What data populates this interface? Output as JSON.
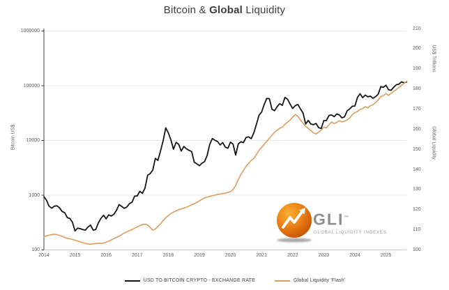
{
  "title": {
    "pre": "Bitcoin & ",
    "bold": "Global",
    "post": " Liquidity"
  },
  "axes": {
    "left": {
      "title": "Bitcoin US$",
      "tick_labels": [
        "1000000",
        "100000",
        "10000",
        "1000",
        "100"
      ]
    },
    "right": {
      "unit_label": "US$ Trillions",
      "axis_label": "Global Liquidity",
      "tick_labels": [
        "210",
        "200",
        "190",
        "180",
        "170",
        "160",
        "150",
        "140",
        "130",
        "120",
        "110",
        "100"
      ]
    },
    "x": {
      "tick_labels": [
        "2014",
        "2015",
        "2016",
        "2017",
        "2018",
        "2019",
        "2020",
        "2021",
        "2022",
        "2023",
        "2024",
        "2025"
      ]
    }
  },
  "legend": {
    "items": [
      {
        "label": "USD TO BITCOIN CRYPTO - EXCHANGE RATE",
        "color": "#141414"
      },
      {
        "label": "Global Liquidity 'Flash'",
        "color": "#dc9c5e"
      }
    ]
  },
  "logo": {
    "name": "GLI",
    "trademark": "™",
    "subtitle": "GLOBAL LIQUIDITY INDEXES",
    "orange": "#e8731a",
    "gray": "#8d8d8d"
  },
  "chart_data": {
    "type": "line",
    "title": "Bitcoin & Global Liquidity",
    "sampling": "monthly",
    "x_start_year": 2014,
    "x_start_month": 1,
    "x_axis": {
      "range": [
        2014,
        2025.75
      ],
      "ticks": [
        2014,
        2015,
        2016,
        2017,
        2018,
        2019,
        2020,
        2021,
        2022,
        2023,
        2024,
        2025
      ]
    },
    "left_axis": {
      "label": "Bitcoin US$",
      "scale": "log",
      "range": [
        100,
        1000000
      ],
      "gridlines": [
        1000000,
        100000,
        10000,
        1000
      ]
    },
    "right_axis": {
      "label": "Global Liquidity (US$ Trillions)",
      "scale": "linear",
      "range": [
        100,
        210
      ],
      "tick_step": 10
    },
    "grid": "horizontal-light",
    "legend_position": "bottom",
    "series": [
      {
        "name": "USD TO BITCOIN CRYPTO - EXCHANGE RATE",
        "axis": "left",
        "color": "#141414",
        "values": [
          940,
          810,
          630,
          580,
          630,
          640,
          590,
          505,
          480,
          390,
          375,
          320,
          222,
          250,
          245,
          235,
          230,
          262,
          284,
          230,
          236,
          312,
          378,
          430,
          370,
          437,
          416,
          450,
          530,
          673,
          625,
          575,
          610,
          700,
          745,
          960,
          970,
          1180,
          1080,
          1350,
          2300,
          2480,
          2875,
          4700,
          4340,
          6470,
          9900,
          17000,
          13800,
          10300,
          6940,
          9240,
          8500,
          6400,
          7780,
          7040,
          6600,
          6300,
          4020,
          3740,
          3460,
          3850,
          4100,
          5320,
          8580,
          10820,
          10080,
          9600,
          8300,
          9150,
          7550,
          7200,
          9350,
          8550,
          5400,
          8650,
          9450,
          9140,
          11350,
          11650,
          10780,
          13800,
          19700,
          29000,
          33100,
          45100,
          58800,
          57750,
          37300,
          35000,
          41500,
          47100,
          43800,
          61300,
          57000,
          46200,
          38500,
          43200,
          45500,
          37650,
          31800,
          19900,
          23300,
          20050,
          19400,
          20500,
          17150,
          16550,
          23100,
          23150,
          28500,
          29250,
          27200,
          30470,
          29230,
          25930,
          26960,
          34660,
          37720,
          42270,
          42580,
          61200,
          71330,
          60640,
          67540,
          62680,
          64620,
          58970,
          63330,
          70220,
          96450,
          93430,
          102400,
          84350,
          82550,
          94200,
          104600,
          107100,
          118000,
          113000,
          117000
        ]
      },
      {
        "name": "Global Liquidity 'Flash'",
        "axis": "right",
        "color": "#dc9c5e",
        "values": [
          106.5,
          107,
          107.3,
          107.6,
          107.8,
          107.6,
          107.2,
          106.8,
          106.2,
          105.8,
          105.5,
          105.2,
          104.8,
          104.4,
          104,
          103.6,
          103.2,
          103,
          102.8,
          103,
          103.2,
          103.4,
          103.2,
          103.4,
          103.8,
          104.4,
          105,
          105.6,
          106.2,
          106.8,
          107.6,
          108.4,
          109,
          109.6,
          110.2,
          110.8,
          111.4,
          112,
          112.6,
          112.8,
          112.4,
          111.2,
          109.8,
          110.4,
          111.6,
          113,
          114.6,
          116,
          117,
          118,
          118.8,
          119.4,
          120,
          120.4,
          120.8,
          121.2,
          121.8,
          122.4,
          123,
          123.6,
          124.4,
          125.2,
          125.8,
          126.2,
          126.6,
          127,
          127.2,
          127.6,
          127.8,
          128,
          128.2,
          128.6,
          129,
          130,
          132,
          135,
          137.5,
          139.5,
          141.5,
          143,
          144.5,
          145.5,
          147.5,
          149.5,
          151,
          152.5,
          154,
          155.5,
          157,
          158.5,
          159.5,
          160.5,
          161,
          162.5,
          163.5,
          164.5,
          166,
          167.2,
          166.4,
          164.6,
          163,
          161.4,
          160.4,
          159.4,
          158.2,
          157.6,
          158.6,
          159.6,
          161,
          160.6,
          162.2,
          163.6,
          162.8,
          163.4,
          164.2,
          163.6,
          164,
          164.6,
          165.6,
          167.2,
          168.2,
          168.8,
          169.8,
          170.2,
          171.2,
          170.6,
          171.6,
          172.2,
          173.2,
          174.6,
          176.2,
          176.8,
          177.6,
          176.8,
          177.8,
          178.8,
          179.8,
          180.8,
          181.8,
          182.8,
          183.8
        ]
      }
    ]
  }
}
